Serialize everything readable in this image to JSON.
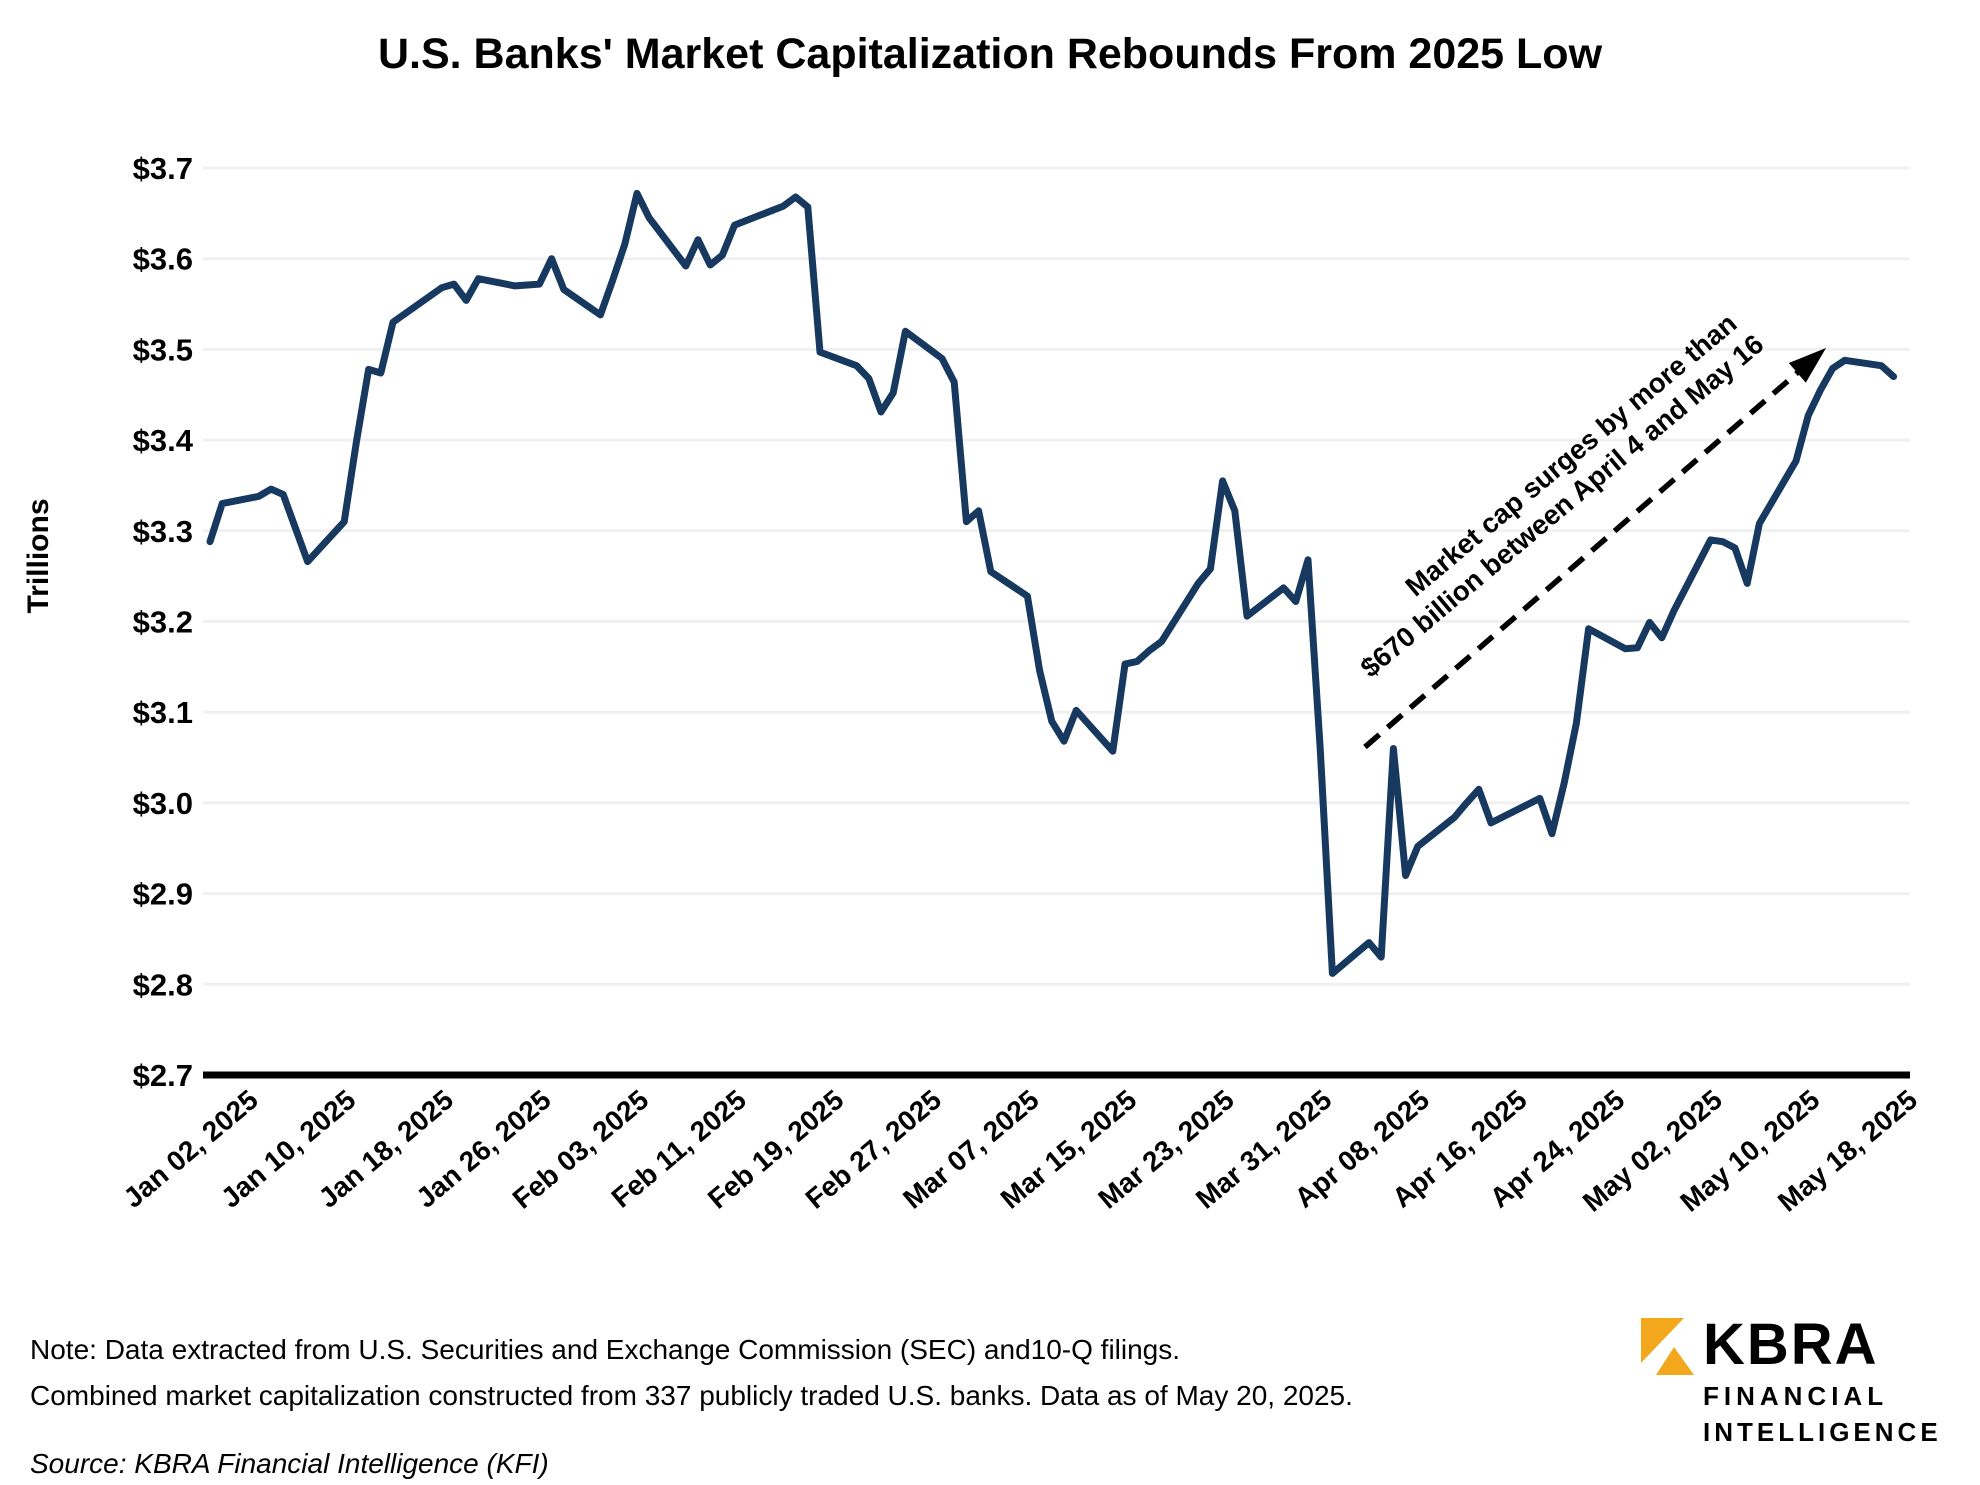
{
  "title": "U.S. Banks' Market Capitalization Rebounds From 2025 Low",
  "chart_data": {
    "type": "line",
    "title": "U.S. Banks' Market Capitalization Rebounds From 2025 Low",
    "xlabel": "",
    "ylabel": "Trillions",
    "ylim": [
      2.7,
      3.7
    ],
    "ytick_step": 0.1,
    "ytick_labels": [
      "$2.7",
      "$2.8",
      "$2.9",
      "$3.0",
      "$3.1",
      "$3.2",
      "$3.3",
      "$3.4",
      "$3.5",
      "$3.6",
      "$3.7"
    ],
    "xtick_labels": [
      "Jan 02, 2025",
      "Jan 10, 2025",
      "Jan 18, 2025",
      "Jan 26, 2025",
      "Feb 03, 2025",
      "Feb 11, 2025",
      "Feb 19, 2025",
      "Feb 27, 2025",
      "Mar 07, 2025",
      "Mar 15, 2025",
      "Mar 23, 2025",
      "Mar 31, 2025",
      "Apr 08, 2025",
      "Apr 16, 2025",
      "Apr 24, 2025",
      "May 02, 2025",
      "May 10, 2025",
      "May 18, 2025"
    ],
    "xtick_interval_days": 8,
    "grid": true,
    "legend": "none",
    "series": [
      {
        "name": "Combined U.S. bank market capitalization ($ trillions)",
        "points": [
          [
            "2025-01-02",
            3.288
          ],
          [
            "2025-01-03",
            3.33
          ],
          [
            "2025-01-06",
            3.338
          ],
          [
            "2025-01-07",
            3.346
          ],
          [
            "2025-01-08",
            3.34
          ],
          [
            "2025-01-10",
            3.266
          ],
          [
            "2025-01-13",
            3.31
          ],
          [
            "2025-01-14",
            3.398
          ],
          [
            "2025-01-15",
            3.478
          ],
          [
            "2025-01-16",
            3.474
          ],
          [
            "2025-01-17",
            3.53
          ],
          [
            "2025-01-21",
            3.568
          ],
          [
            "2025-01-22",
            3.572
          ],
          [
            "2025-01-23",
            3.554
          ],
          [
            "2025-01-24",
            3.578
          ],
          [
            "2025-01-27",
            3.57
          ],
          [
            "2025-01-28",
            3.571
          ],
          [
            "2025-01-29",
            3.572
          ],
          [
            "2025-01-30",
            3.6
          ],
          [
            "2025-01-31",
            3.566
          ],
          [
            "2025-02-03",
            3.538
          ],
          [
            "2025-02-04",
            3.576
          ],
          [
            "2025-02-05",
            3.616
          ],
          [
            "2025-02-06",
            3.672
          ],
          [
            "2025-02-07",
            3.645
          ],
          [
            "2025-02-10",
            3.592
          ],
          [
            "2025-02-11",
            3.621
          ],
          [
            "2025-02-12",
            3.593
          ],
          [
            "2025-02-13",
            3.604
          ],
          [
            "2025-02-14",
            3.637
          ],
          [
            "2025-02-18",
            3.658
          ],
          [
            "2025-02-19",
            3.668
          ],
          [
            "2025-02-20",
            3.657
          ],
          [
            "2025-02-21",
            3.497
          ],
          [
            "2025-02-24",
            3.482
          ],
          [
            "2025-02-25",
            3.468
          ],
          [
            "2025-02-26",
            3.431
          ],
          [
            "2025-02-27",
            3.452
          ],
          [
            "2025-02-28",
            3.52
          ],
          [
            "2025-03-03",
            3.49
          ],
          [
            "2025-03-04",
            3.464
          ],
          [
            "2025-03-05",
            3.31
          ],
          [
            "2025-03-06",
            3.322
          ],
          [
            "2025-03-07",
            3.255
          ],
          [
            "2025-03-10",
            3.228
          ],
          [
            "2025-03-11",
            3.146
          ],
          [
            "2025-03-12",
            3.09
          ],
          [
            "2025-03-13",
            3.068
          ],
          [
            "2025-03-14",
            3.102
          ],
          [
            "2025-03-17",
            3.057
          ],
          [
            "2025-03-18",
            3.153
          ],
          [
            "2025-03-19",
            3.156
          ],
          [
            "2025-03-20",
            3.168
          ],
          [
            "2025-03-21",
            3.178
          ],
          [
            "2025-03-24",
            3.242
          ],
          [
            "2025-03-25",
            3.258
          ],
          [
            "2025-03-26",
            3.355
          ],
          [
            "2025-03-27",
            3.322
          ],
          [
            "2025-03-28",
            3.206
          ],
          [
            "2025-03-31",
            3.237
          ],
          [
            "2025-04-01",
            3.222
          ],
          [
            "2025-04-02",
            3.268
          ],
          [
            "2025-04-03",
            3.06
          ],
          [
            "2025-04-04",
            2.812
          ],
          [
            "2025-04-07",
            2.846
          ],
          [
            "2025-04-08",
            2.83
          ],
          [
            "2025-04-09",
            3.06
          ],
          [
            "2025-04-10",
            2.92
          ],
          [
            "2025-04-11",
            2.952
          ],
          [
            "2025-04-14",
            2.984
          ],
          [
            "2025-04-15",
            3.0
          ],
          [
            "2025-04-16",
            3.015
          ],
          [
            "2025-04-17",
            2.978
          ],
          [
            "2025-04-21",
            3.005
          ],
          [
            "2025-04-22",
            2.966
          ],
          [
            "2025-04-23",
            3.022
          ],
          [
            "2025-04-24",
            3.088
          ],
          [
            "2025-04-25",
            3.192
          ],
          [
            "2025-04-28",
            3.17
          ],
          [
            "2025-04-29",
            3.171
          ],
          [
            "2025-04-30",
            3.199
          ],
          [
            "2025-05-01",
            3.182
          ],
          [
            "2025-05-02",
            3.212
          ],
          [
            "2025-05-05",
            3.29
          ],
          [
            "2025-05-06",
            3.288
          ],
          [
            "2025-05-07",
            3.281
          ],
          [
            "2025-05-08",
            3.242
          ],
          [
            "2025-05-09",
            3.308
          ],
          [
            "2025-05-12",
            3.377
          ],
          [
            "2025-05-13",
            3.427
          ],
          [
            "2025-05-14",
            3.455
          ],
          [
            "2025-05-15",
            3.479
          ],
          [
            "2025-05-16",
            3.488
          ],
          [
            "2025-05-19",
            3.482
          ],
          [
            "2025-05-20",
            3.47
          ]
        ]
      }
    ],
    "annotation": {
      "line1": "Market cap surges by more than",
      "line2": "$670 billion between April 4 and May 16",
      "arrow_style": "dashed"
    }
  },
  "footer": {
    "note_line1": "Note: Data extracted from U.S. Securities and Exchange Commission (SEC) and10-Q filings.",
    "note_line2": "Combined market capitalization constructed from 337 publicly traded U.S. banks. Data as of May 20, 2025.",
    "source": "Source: KBRA Financial Intelligence (KFI)"
  },
  "logo": {
    "brand": "KBRA",
    "sub_line1": "FINANCIAL",
    "sub_line2": "INTELLIGENCE"
  },
  "colors": {
    "line": "#17395F",
    "grid": "#F0F0F0",
    "axis": "#000000",
    "text": "#000000",
    "logo_gold": "#F2A71C"
  }
}
